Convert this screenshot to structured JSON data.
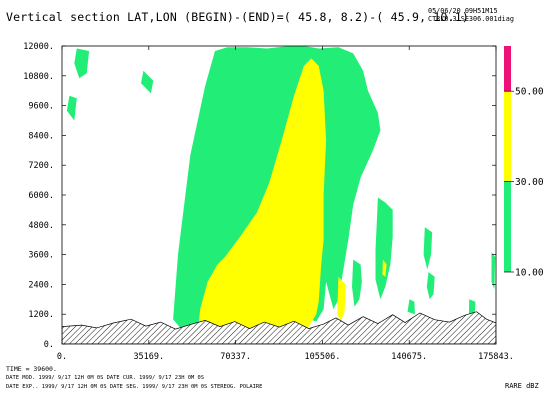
{
  "header": {
    "title": "Vertical section LAT,LON (BEGIN)-(END)=( 45.8, 8.2)-( 45.9, 10.1)",
    "date": "05/06/20    09H51M15",
    "file": "CTRL0.3.SE306.001diag"
  },
  "footer": {
    "time": "TIME =    39600.",
    "line1": "DATE MOD. 1999/ 9/17  12H 0M 0S    DATE CUR. 1999/ 9/17  23H 0M 0S",
    "line2": "DATE EXP.. 1999/ 9/17  12H 0M 0S   DATE SEG. 1999/ 9/17  23H 0M 0S   STEREOG. POLAIRE",
    "units": "RARE dBZ"
  },
  "colors": {
    "green": "#22ee77",
    "yellow": "#ffff00",
    "magenta": "#ee1177",
    "terrain_hatch": "#000000"
  },
  "chart_data": {
    "type": "contour",
    "title": "Vertical section LAT,LON (BEGIN)-(END)=( 45.8, 8.2)-( 45.9, 10.1)",
    "xlim": [
      0,
      175843
    ],
    "ylim": [
      0,
      12000
    ],
    "x_ticks": [
      "0.",
      "35169.",
      "70337.",
      "105506.",
      "140675.",
      "175843."
    ],
    "x_tick_values": [
      0,
      35169,
      70337,
      105506,
      140675,
      175843
    ],
    "y_ticks": [
      "0.",
      "1200.",
      "2400.",
      "3600.",
      "4800.",
      "6000.",
      "7200.",
      "8400.",
      "9600.",
      "10800.",
      "12000."
    ],
    "y_tick_values": [
      0,
      1200,
      2400,
      3600,
      4800,
      6000,
      7200,
      8400,
      9600,
      10800,
      12000
    ],
    "colorbar": {
      "label": "RARE dBZ",
      "levels": [
        "10.00",
        "30.00",
        "50.00"
      ],
      "level_values": [
        10,
        30,
        50
      ],
      "bands": [
        {
          "from": 10,
          "to": 30,
          "color": "#22ee77"
        },
        {
          "from": 30,
          "to": 50,
          "color": "#ffff00"
        },
        {
          "from": 50,
          "to": 60,
          "color": "#ee1177"
        }
      ]
    },
    "terrain": [
      [
        0,
        700
      ],
      [
        8000,
        760
      ],
      [
        14000,
        650
      ],
      [
        21000,
        850
      ],
      [
        28000,
        1000
      ],
      [
        34000,
        720
      ],
      [
        40000,
        880
      ],
      [
        46000,
        600
      ],
      [
        52000,
        780
      ],
      [
        58000,
        950
      ],
      [
        64000,
        700
      ],
      [
        70000,
        900
      ],
      [
        76000,
        620
      ],
      [
        82000,
        880
      ],
      [
        88000,
        680
      ],
      [
        94000,
        920
      ],
      [
        100000,
        620
      ],
      [
        106000,
        800
      ],
      [
        111000,
        1050
      ],
      [
        116000,
        760
      ],
      [
        122000,
        1100
      ],
      [
        128000,
        820
      ],
      [
        134000,
        1180
      ],
      [
        139000,
        860
      ],
      [
        145000,
        1250
      ],
      [
        151000,
        980
      ],
      [
        157000,
        880
      ],
      [
        163000,
        1150
      ],
      [
        168000,
        1300
      ],
      [
        172000,
        1000
      ],
      [
        175843,
        850
      ]
    ],
    "regions_10dbz": [
      [
        [
          45000,
          1000
        ],
        [
          47000,
          3600
        ],
        [
          52000,
          7600
        ],
        [
          58000,
          10400
        ],
        [
          62000,
          11800
        ],
        [
          67000,
          11950
        ],
        [
          75000,
          11950
        ],
        [
          83000,
          11900
        ],
        [
          92000,
          12000
        ],
        [
          98000,
          12000
        ],
        [
          104000,
          11900
        ],
        [
          112000,
          11950
        ],
        [
          118000,
          11700
        ],
        [
          122000,
          11000
        ],
        [
          124000,
          10200
        ],
        [
          128000,
          9300
        ],
        [
          129000,
          8600
        ],
        [
          126000,
          7800
        ],
        [
          121000,
          6700
        ],
        [
          118000,
          5600
        ],
        [
          116000,
          4200
        ],
        [
          114000,
          3000
        ],
        [
          112000,
          1800
        ],
        [
          110000,
          1400
        ],
        [
          107000,
          2500
        ],
        [
          106000,
          1400
        ],
        [
          103000,
          900
        ],
        [
          98000,
          1100
        ],
        [
          92000,
          500
        ],
        [
          75000,
          500
        ],
        [
          62000,
          450
        ],
        [
          50000,
          400
        ]
      ],
      [
        [
          6000,
          11900
        ],
        [
          11000,
          11800
        ],
        [
          10000,
          10900
        ],
        [
          7000,
          10700
        ],
        [
          5000,
          11300
        ]
      ],
      [
        [
          3000,
          10000
        ],
        [
          6000,
          9900
        ],
        [
          5000,
          9000
        ],
        [
          2000,
          9400
        ]
      ],
      [
        [
          33000,
          11000
        ],
        [
          37000,
          10600
        ],
        [
          36000,
          10100
        ],
        [
          32000,
          10500
        ]
      ],
      [
        [
          69000,
          2000
        ],
        [
          72000,
          1800
        ],
        [
          73000,
          2600
        ],
        [
          71000,
          2900
        ],
        [
          69000,
          2500
        ]
      ],
      [
        [
          128000,
          5900
        ],
        [
          131000,
          5700
        ],
        [
          134000,
          5400
        ],
        [
          134000,
          4300
        ],
        [
          133000,
          3200
        ],
        [
          131000,
          2300
        ],
        [
          129000,
          1800
        ],
        [
          127000,
          2600
        ],
        [
          127000,
          3800
        ],
        [
          127500,
          4800
        ]
      ],
      [
        [
          118000,
          3400
        ],
        [
          121000,
          3200
        ],
        [
          121500,
          2500
        ],
        [
          120500,
          1800
        ],
        [
          118500,
          1500
        ],
        [
          117500,
          2300
        ]
      ],
      [
        [
          108000,
          5000
        ],
        [
          111000,
          4600
        ],
        [
          111000,
          3700
        ],
        [
          109000,
          3300
        ],
        [
          107500,
          4200
        ]
      ],
      [
        [
          147000,
          4700
        ],
        [
          150000,
          4500
        ],
        [
          149500,
          3600
        ],
        [
          148000,
          3000
        ],
        [
          146500,
          3600
        ]
      ],
      [
        [
          148500,
          2900
        ],
        [
          151000,
          2700
        ],
        [
          150500,
          2000
        ],
        [
          149000,
          1800
        ],
        [
          147800,
          2300
        ]
      ],
      [
        [
          140000,
          1300
        ],
        [
          143000,
          1200
        ],
        [
          142800,
          1700
        ],
        [
          140800,
          1800
        ]
      ],
      [
        [
          174000,
          3700
        ],
        [
          175500,
          3500
        ],
        [
          175200,
          2200
        ],
        [
          174000,
          2500
        ]
      ],
      [
        [
          165000,
          1800
        ],
        [
          167500,
          1700
        ],
        [
          167000,
          700
        ],
        [
          164800,
          700
        ]
      ],
      [
        [
          170000,
          700
        ],
        [
          172500,
          750
        ],
        [
          172000,
          500
        ],
        [
          170000,
          500
        ]
      ]
    ],
    "regions_30dbz": [
      [
        [
          55000,
          450
        ],
        [
          56000,
          1400
        ],
        [
          59000,
          2500
        ],
        [
          63000,
          3200
        ],
        [
          66000,
          3500
        ],
        [
          72000,
          4300
        ],
        [
          79000,
          5300
        ],
        [
          84000,
          6500
        ],
        [
          89000,
          8200
        ],
        [
          94000,
          10000
        ],
        [
          98000,
          11200
        ],
        [
          101000,
          11500
        ],
        [
          104000,
          11200
        ],
        [
          106000,
          10200
        ],
        [
          107000,
          8200
        ],
        [
          106000,
          6000
        ],
        [
          106000,
          4200
        ],
        [
          105000,
          3200
        ],
        [
          104000,
          1700
        ],
        [
          103000,
          1200
        ],
        [
          100000,
          700
        ],
        [
          96000,
          400
        ],
        [
          88000,
          420
        ],
        [
          78000,
          420
        ],
        [
          66000,
          420
        ]
      ],
      [
        [
          112000,
          2700
        ],
        [
          115000,
          2400
        ],
        [
          114500,
          1300
        ],
        [
          113000,
          900
        ],
        [
          111500,
          1200
        ]
      ],
      [
        [
          130000,
          3400
        ],
        [
          131500,
          3200
        ],
        [
          131000,
          2700
        ],
        [
          129800,
          2800
        ]
      ]
    ]
  }
}
